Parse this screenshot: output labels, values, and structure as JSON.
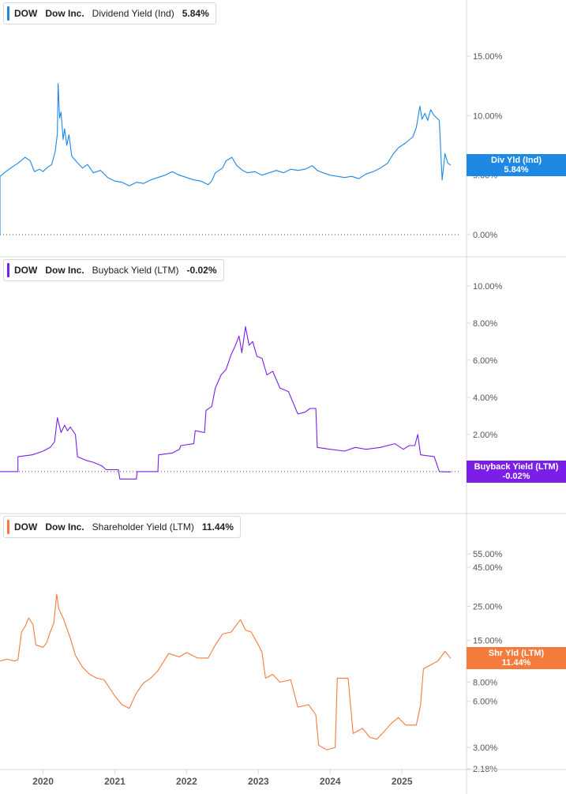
{
  "chart_data": [
    {
      "type": "line",
      "ticker": "DOW",
      "company": "Dow Inc.",
      "metric": "Dividend Yield (Ind)",
      "current_value": "5.84%",
      "badge": {
        "label": "Div Yld (Ind)",
        "value": "5.84%"
      },
      "color": "#1e88e5",
      "scale": "linear",
      "ylim": [
        0,
        17
      ],
      "ticks": [
        {
          "v": 0,
          "label": "0.00%"
        },
        {
          "v": 5,
          "label": "5.00%"
        },
        {
          "v": 10,
          "label": "10.00%"
        },
        {
          "v": 15,
          "label": "15.00%"
        }
      ],
      "baseline": 0,
      "series": [
        {
          "points": [
            [
              2019.4,
              0.0
            ],
            [
              2019.4,
              4.9
            ],
            [
              2019.48,
              5.3
            ],
            [
              2019.55,
              5.6
            ],
            [
              2019.65,
              6.0
            ],
            [
              2019.75,
              6.5
            ],
            [
              2019.82,
              6.2
            ],
            [
              2019.88,
              5.3
            ],
            [
              2019.95,
              5.5
            ],
            [
              2020.0,
              5.3
            ],
            [
              2020.05,
              5.6
            ],
            [
              2020.12,
              5.9
            ],
            [
              2020.17,
              7.0
            ],
            [
              2020.2,
              8.5
            ],
            [
              2020.21,
              12.7
            ],
            [
              2020.23,
              9.8
            ],
            [
              2020.25,
              10.3
            ],
            [
              2020.28,
              8.0
            ],
            [
              2020.3,
              8.9
            ],
            [
              2020.33,
              7.5
            ],
            [
              2020.36,
              8.4
            ],
            [
              2020.4,
              6.6
            ],
            [
              2020.47,
              6.1
            ],
            [
              2020.55,
              5.6
            ],
            [
              2020.62,
              5.9
            ],
            [
              2020.7,
              5.2
            ],
            [
              2020.8,
              5.4
            ],
            [
              2020.9,
              4.8
            ],
            [
              2021.0,
              4.5
            ],
            [
              2021.1,
              4.4
            ],
            [
              2021.2,
              4.1
            ],
            [
              2021.3,
              4.4
            ],
            [
              2021.4,
              4.3
            ],
            [
              2021.5,
              4.6
            ],
            [
              2021.6,
              4.8
            ],
            [
              2021.7,
              5.0
            ],
            [
              2021.8,
              5.3
            ],
            [
              2021.9,
              5.0
            ],
            [
              2022.0,
              4.8
            ],
            [
              2022.1,
              4.6
            ],
            [
              2022.2,
              4.5
            ],
            [
              2022.3,
              4.2
            ],
            [
              2022.35,
              4.5
            ],
            [
              2022.4,
              5.2
            ],
            [
              2022.5,
              5.6
            ],
            [
              2022.55,
              6.2
            ],
            [
              2022.63,
              6.5
            ],
            [
              2022.7,
              5.8
            ],
            [
              2022.78,
              5.4
            ],
            [
              2022.85,
              5.2
            ],
            [
              2022.95,
              5.3
            ],
            [
              2023.05,
              5.0
            ],
            [
              2023.15,
              5.2
            ],
            [
              2023.25,
              5.4
            ],
            [
              2023.35,
              5.2
            ],
            [
              2023.45,
              5.5
            ],
            [
              2023.55,
              5.4
            ],
            [
              2023.65,
              5.5
            ],
            [
              2023.75,
              5.8
            ],
            [
              2023.82,
              5.4
            ],
            [
              2023.9,
              5.2
            ],
            [
              2024.0,
              5.0
            ],
            [
              2024.1,
              4.9
            ],
            [
              2024.2,
              4.8
            ],
            [
              2024.3,
              4.9
            ],
            [
              2024.4,
              4.7
            ],
            [
              2024.5,
              5.1
            ],
            [
              2024.6,
              5.3
            ],
            [
              2024.7,
              5.6
            ],
            [
              2024.8,
              6.0
            ],
            [
              2024.88,
              6.8
            ],
            [
              2024.95,
              7.3
            ],
            [
              2025.05,
              7.7
            ],
            [
              2025.15,
              8.2
            ],
            [
              2025.2,
              9.0
            ],
            [
              2025.25,
              10.8
            ],
            [
              2025.28,
              9.7
            ],
            [
              2025.32,
              10.2
            ],
            [
              2025.36,
              9.6
            ],
            [
              2025.4,
              10.5
            ],
            [
              2025.45,
              10.0
            ],
            [
              2025.52,
              9.6
            ],
            [
              2025.55,
              5.8
            ],
            [
              2025.56,
              4.6
            ],
            [
              2025.6,
              6.8
            ],
            [
              2025.64,
              6.0
            ],
            [
              2025.68,
              5.84
            ]
          ]
        }
      ]
    },
    {
      "type": "line",
      "ticker": "DOW",
      "company": "Dow Inc.",
      "metric": "Buyback Yield (LTM)",
      "current_value": "-0.02%",
      "badge": {
        "label": "Buyback Yield (LTM)",
        "value": "-0.02%"
      },
      "color": "#7b1fe8",
      "scale": "linear",
      "ylim": [
        -0.6,
        10.8
      ],
      "ticks": [
        {
          "v": 2,
          "label": "2.00%"
        },
        {
          "v": 4,
          "label": "4.00%"
        },
        {
          "v": 6,
          "label": "6.00%"
        },
        {
          "v": 8,
          "label": "8.00%"
        },
        {
          "v": 10,
          "label": "10.00%"
        }
      ],
      "baseline": 0,
      "series": [
        {
          "points": [
            [
              2019.4,
              0.0
            ],
            [
              2019.65,
              0.0
            ],
            [
              2019.65,
              0.8
            ],
            [
              2019.85,
              0.9
            ],
            [
              2020.0,
              1.1
            ],
            [
              2020.1,
              1.3
            ],
            [
              2020.16,
              1.6
            ],
            [
              2020.2,
              2.9
            ],
            [
              2020.25,
              2.1
            ],
            [
              2020.3,
              2.5
            ],
            [
              2020.34,
              2.2
            ],
            [
              2020.38,
              2.4
            ],
            [
              2020.45,
              2.0
            ],
            [
              2020.48,
              0.8
            ],
            [
              2020.6,
              0.6
            ],
            [
              2020.7,
              0.5
            ],
            [
              2020.82,
              0.3
            ],
            [
              2020.88,
              0.1
            ],
            [
              2021.05,
              0.1
            ],
            [
              2021.07,
              -0.4
            ],
            [
              2021.3,
              -0.4
            ],
            [
              2021.31,
              0.0
            ],
            [
              2021.6,
              0.0
            ],
            [
              2021.61,
              0.9
            ],
            [
              2021.8,
              1.0
            ],
            [
              2021.9,
              1.2
            ],
            [
              2021.92,
              1.4
            ],
            [
              2022.1,
              1.5
            ],
            [
              2022.12,
              2.2
            ],
            [
              2022.25,
              2.1
            ],
            [
              2022.27,
              3.3
            ],
            [
              2022.35,
              3.5
            ],
            [
              2022.4,
              4.5
            ],
            [
              2022.48,
              5.2
            ],
            [
              2022.55,
              5.5
            ],
            [
              2022.62,
              6.3
            ],
            [
              2022.67,
              6.7
            ],
            [
              2022.73,
              7.3
            ],
            [
              2022.77,
              6.4
            ],
            [
              2022.82,
              7.8
            ],
            [
              2022.87,
              6.8
            ],
            [
              2022.92,
              7.0
            ],
            [
              2022.98,
              6.2
            ],
            [
              2023.05,
              6.1
            ],
            [
              2023.12,
              5.2
            ],
            [
              2023.2,
              5.4
            ],
            [
              2023.3,
              4.5
            ],
            [
              2023.42,
              4.3
            ],
            [
              2023.55,
              3.1
            ],
            [
              2023.65,
              3.2
            ],
            [
              2023.72,
              3.4
            ],
            [
              2023.8,
              3.4
            ],
            [
              2023.82,
              1.3
            ],
            [
              2024.0,
              1.2
            ],
            [
              2024.2,
              1.1
            ],
            [
              2024.35,
              1.3
            ],
            [
              2024.5,
              1.2
            ],
            [
              2024.7,
              1.3
            ],
            [
              2024.9,
              1.5
            ],
            [
              2025.02,
              1.2
            ],
            [
              2025.1,
              1.4
            ],
            [
              2025.18,
              1.4
            ],
            [
              2025.22,
              2.0
            ],
            [
              2025.26,
              0.9
            ],
            [
              2025.45,
              0.8
            ],
            [
              2025.52,
              0.0
            ],
            [
              2025.68,
              -0.02
            ]
          ]
        }
      ]
    },
    {
      "type": "line",
      "ticker": "DOW",
      "company": "Dow Inc.",
      "metric": "Shareholder Yield (LTM)",
      "current_value": "11.44%",
      "badge": {
        "label": "Shr Yld (LTM)",
        "value": "11.44%"
      },
      "color": "#f47b3b",
      "scale": "log",
      "ylim": [
        2.18,
        65
      ],
      "ticks": [
        {
          "v": 2.18,
          "label": "2.18%"
        },
        {
          "v": 3,
          "label": "3.00%"
        },
        {
          "v": 6,
          "label": "6.00%"
        },
        {
          "v": 8,
          "label": "8.00%"
        },
        {
          "v": 15,
          "label": "15.00%"
        },
        {
          "v": 25,
          "label": "25.00%"
        },
        {
          "v": 45,
          "label": "45.00%"
        },
        {
          "v": 55,
          "label": "55.00%"
        }
      ],
      "series": [
        {
          "points": [
            [
              2019.4,
              11.0
            ],
            [
              2019.5,
              11.3
            ],
            [
              2019.6,
              11.0
            ],
            [
              2019.65,
              11.2
            ],
            [
              2019.7,
              17.0
            ],
            [
              2019.75,
              18.5
            ],
            [
              2019.8,
              21.0
            ],
            [
              2019.86,
              19.0
            ],
            [
              2019.9,
              14.0
            ],
            [
              2020.0,
              13.5
            ],
            [
              2020.05,
              14.5
            ],
            [
              2020.1,
              17.0
            ],
            [
              2020.15,
              19.5
            ],
            [
              2020.19,
              30.0
            ],
            [
              2020.22,
              24.0
            ],
            [
              2020.28,
              21.0
            ],
            [
              2020.33,
              18.0
            ],
            [
              2020.38,
              15.5
            ],
            [
              2020.45,
              12.0
            ],
            [
              2020.55,
              10.0
            ],
            [
              2020.65,
              9.0
            ],
            [
              2020.75,
              8.5
            ],
            [
              2020.85,
              8.3
            ],
            [
              2021.0,
              6.5
            ],
            [
              2021.1,
              5.7
            ],
            [
              2021.2,
              5.4
            ],
            [
              2021.3,
              6.8
            ],
            [
              2021.4,
              7.9
            ],
            [
              2021.5,
              8.5
            ],
            [
              2021.6,
              9.5
            ],
            [
              2021.75,
              12.3
            ],
            [
              2021.9,
              11.7
            ],
            [
              2022.0,
              12.5
            ],
            [
              2022.15,
              11.5
            ],
            [
              2022.3,
              11.5
            ],
            [
              2022.4,
              14.0
            ],
            [
              2022.5,
              16.5
            ],
            [
              2022.62,
              17.0
            ],
            [
              2022.75,
              20.5
            ],
            [
              2022.82,
              17.5
            ],
            [
              2022.9,
              17.0
            ],
            [
              2023.0,
              14.0
            ],
            [
              2023.05,
              12.5
            ],
            [
              2023.1,
              8.5
            ],
            [
              2023.2,
              9.0
            ],
            [
              2023.3,
              8.0
            ],
            [
              2023.45,
              8.3
            ],
            [
              2023.55,
              5.5
            ],
            [
              2023.7,
              5.7
            ],
            [
              2023.8,
              4.9
            ],
            [
              2023.84,
              3.1
            ],
            [
              2023.95,
              2.9
            ],
            [
              2024.07,
              3.0
            ],
            [
              2024.1,
              8.5
            ],
            [
              2024.25,
              8.5
            ],
            [
              2024.32,
              3.7
            ],
            [
              2024.45,
              4.0
            ],
            [
              2024.55,
              3.5
            ],
            [
              2024.65,
              3.4
            ],
            [
              2024.75,
              3.8
            ],
            [
              2024.85,
              4.3
            ],
            [
              2024.95,
              4.7
            ],
            [
              2025.05,
              4.2
            ],
            [
              2025.2,
              4.2
            ],
            [
              2025.26,
              5.7
            ],
            [
              2025.3,
              9.8
            ],
            [
              2025.42,
              10.5
            ],
            [
              2025.5,
              11.0
            ],
            [
              2025.6,
              12.7
            ],
            [
              2025.68,
              11.44
            ]
          ]
        }
      ]
    }
  ],
  "x_axis": {
    "ticks": [
      {
        "v": 2020,
        "label": "2020"
      },
      {
        "v": 2021,
        "label": "2021"
      },
      {
        "v": 2022,
        "label": "2022"
      },
      {
        "v": 2023,
        "label": "2023"
      },
      {
        "v": 2024,
        "label": "2024"
      },
      {
        "v": 2025,
        "label": "2025"
      }
    ]
  },
  "colors": {
    "grid_divider": "#d9d9d9",
    "axis_text": "#555555",
    "baseline": "#555555"
  }
}
